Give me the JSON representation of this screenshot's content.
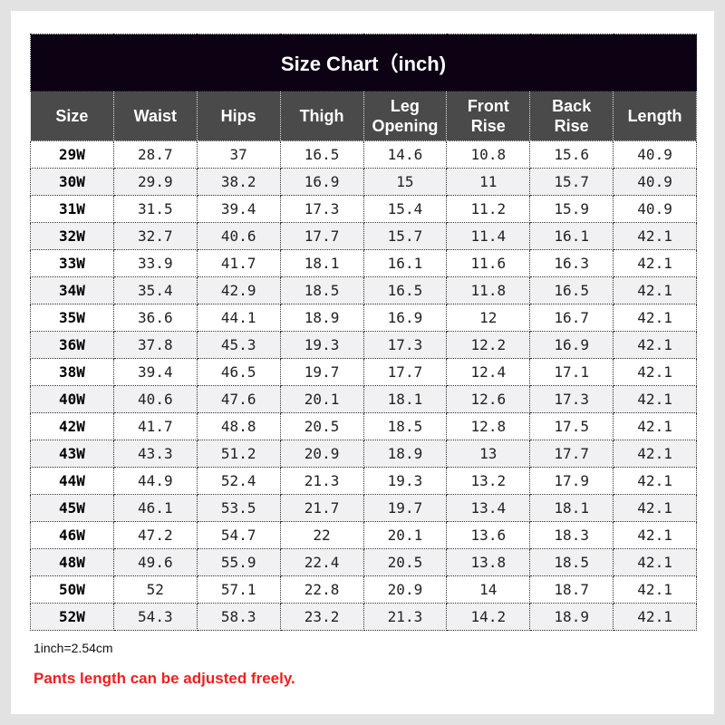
{
  "title": "Size Chart（inch)",
  "headers": [
    "Size",
    "Waist",
    "Hips",
    "Thigh",
    "Leg\nOpening",
    "Front\nRise",
    "Back\nRise",
    "Length"
  ],
  "rows": [
    [
      "29W",
      "28.7",
      "37",
      "16.5",
      "14.6",
      "10.8",
      "15.6",
      "40.9"
    ],
    [
      "30W",
      "29.9",
      "38.2",
      "16.9",
      "15",
      "11",
      "15.7",
      "40.9"
    ],
    [
      "31W",
      "31.5",
      "39.4",
      "17.3",
      "15.4",
      "11.2",
      "15.9",
      "40.9"
    ],
    [
      "32W",
      "32.7",
      "40.6",
      "17.7",
      "15.7",
      "11.4",
      "16.1",
      "42.1"
    ],
    [
      "33W",
      "33.9",
      "41.7",
      "18.1",
      "16.1",
      "11.6",
      "16.3",
      "42.1"
    ],
    [
      "34W",
      "35.4",
      "42.9",
      "18.5",
      "16.5",
      "11.8",
      "16.5",
      "42.1"
    ],
    [
      "35W",
      "36.6",
      "44.1",
      "18.9",
      "16.9",
      "12",
      "16.7",
      "42.1"
    ],
    [
      "36W",
      "37.8",
      "45.3",
      "19.3",
      "17.3",
      "12.2",
      "16.9",
      "42.1"
    ],
    [
      "38W",
      "39.4",
      "46.5",
      "19.7",
      "17.7",
      "12.4",
      "17.1",
      "42.1"
    ],
    [
      "40W",
      "40.6",
      "47.6",
      "20.1",
      "18.1",
      "12.6",
      "17.3",
      "42.1"
    ],
    [
      "42W",
      "41.7",
      "48.8",
      "20.5",
      "18.5",
      "12.8",
      "17.5",
      "42.1"
    ],
    [
      "43W",
      "43.3",
      "51.2",
      "20.9",
      "18.9",
      "13",
      "17.7",
      "42.1"
    ],
    [
      "44W",
      "44.9",
      "52.4",
      "21.3",
      "19.3",
      "13.2",
      "17.9",
      "42.1"
    ],
    [
      "45W",
      "46.1",
      "53.5",
      "21.7",
      "19.7",
      "13.4",
      "18.1",
      "42.1"
    ],
    [
      "46W",
      "47.2",
      "54.7",
      "22",
      "20.1",
      "13.6",
      "18.3",
      "42.1"
    ],
    [
      "48W",
      "49.6",
      "55.9",
      "22.4",
      "20.5",
      "13.8",
      "18.5",
      "42.1"
    ],
    [
      "50W",
      "52",
      "57.1",
      "22.8",
      "20.9",
      "14",
      "18.7",
      "42.1"
    ],
    [
      "52W",
      "54.3",
      "58.3",
      "23.2",
      "21.3",
      "14.2",
      "18.9",
      "42.1"
    ]
  ],
  "note": "1inch=2.54cm",
  "warning": "Pants length can be adjusted freely.",
  "colors": {
    "title_bg": "#0c0214",
    "header_bg": "#4a4a4a",
    "warning": "#f0201e"
  }
}
